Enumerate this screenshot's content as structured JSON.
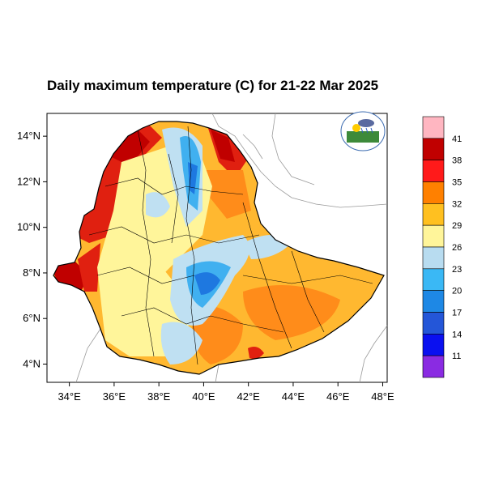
{
  "title": "Daily maximum temperature (C) for 21-22 Mar 2025",
  "axes": {
    "lon_ticks": [
      "34°E",
      "36°E",
      "38°E",
      "40°E",
      "42°E",
      "44°E",
      "46°E",
      "48°E"
    ],
    "lat_ticks": [
      "14°N",
      "12°N",
      "10°N",
      "8°N",
      "6°N",
      "4°N"
    ],
    "lon_range": [
      33,
      48.2
    ],
    "lat_range": [
      3.2,
      15
    ]
  },
  "colorbar": {
    "labels": [
      "41",
      "38",
      "35",
      "32",
      "29",
      "26",
      "23",
      "20",
      "17",
      "14",
      "11"
    ],
    "colors": [
      "#ffb6c1",
      "#c00000",
      "#ff1a1a",
      "#ff8000",
      "#ffc020",
      "#fff59a",
      "#b8dcf0",
      "#3ab8f5",
      "#1e88e5",
      "#2456d8",
      "#0a10f0",
      "#8a2be2"
    ]
  },
  "palette": {
    "hot": "#e02010",
    "very_hot": "#c00000",
    "orange": "#ff8c1a",
    "amber": "#ffb830",
    "yellow": "#fff59a",
    "light_blue": "#bfe0f2",
    "sky": "#40b0f0",
    "blue": "#1e78e0"
  },
  "logo": {
    "icon": "meteorology-agency-logo"
  }
}
